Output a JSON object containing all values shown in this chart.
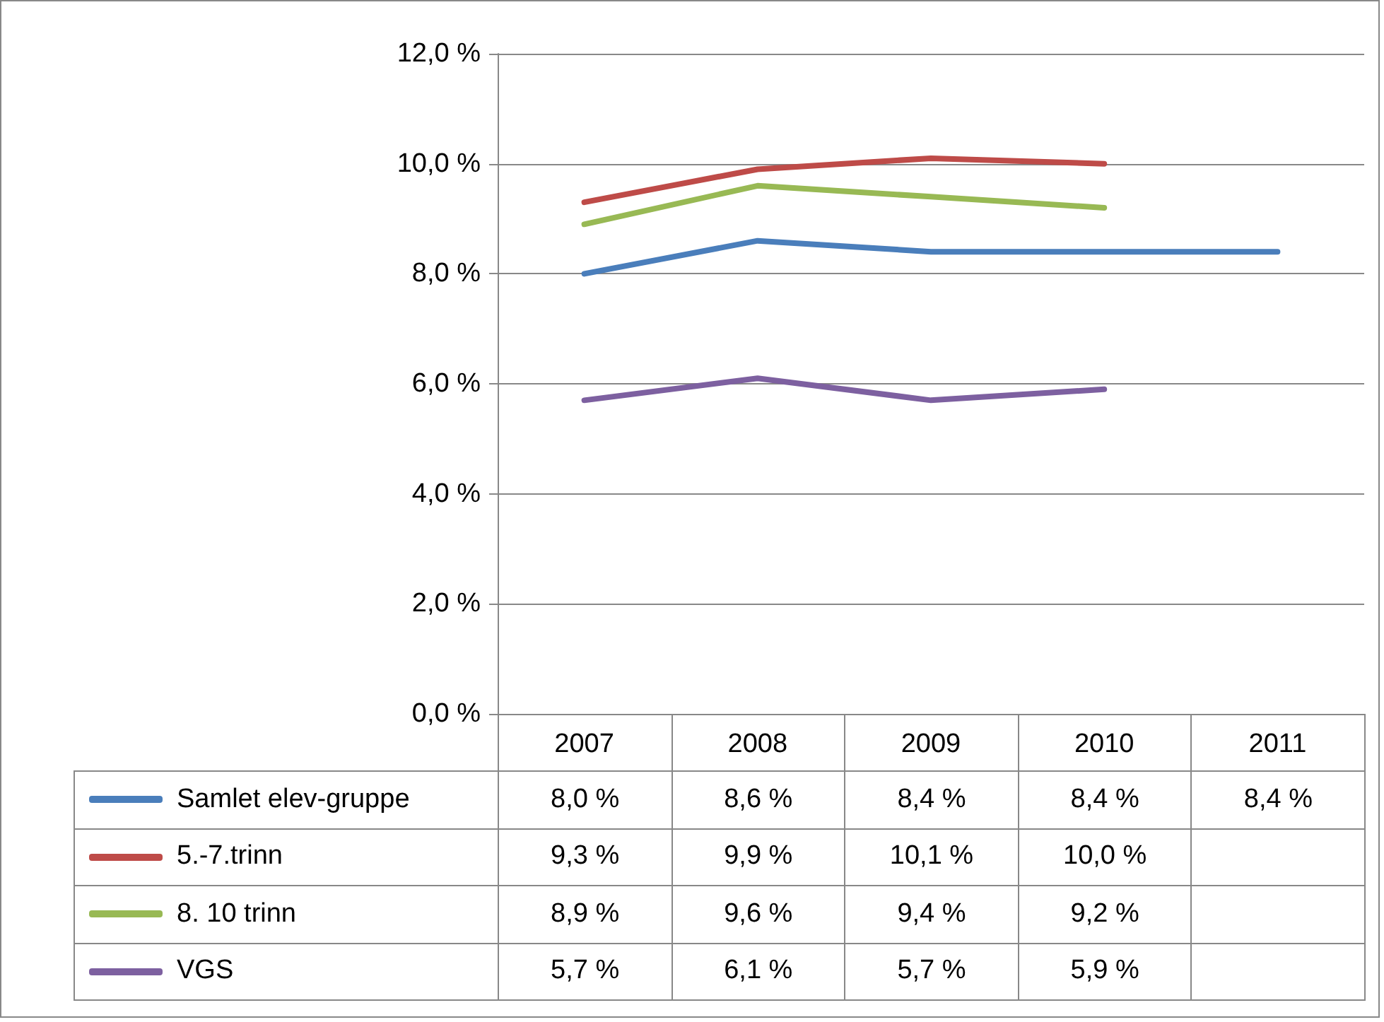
{
  "chart_data": {
    "type": "line",
    "categories": [
      "2007",
      "2008",
      "2009",
      "2010",
      "2011"
    ],
    "series": [
      {
        "name": "Samlet elev-gruppe",
        "color": "#4a7ebb",
        "values": [
          8.0,
          8.6,
          8.4,
          8.4,
          8.4
        ],
        "value_labels": [
          "8,0 %",
          "8,6 %",
          "8,4 %",
          "8,4 %",
          "8,4 %"
        ]
      },
      {
        "name": "5.-7.trinn",
        "color": "#be4b48",
        "values": [
          9.3,
          9.9,
          10.1,
          10.0,
          null
        ],
        "value_labels": [
          "9,3 %",
          "9,9 %",
          "10,1 %",
          "10,0 %",
          null
        ]
      },
      {
        "name": "8. 10 trinn",
        "color": "#98b954",
        "values": [
          8.9,
          9.6,
          9.4,
          9.2,
          null
        ],
        "value_labels": [
          "8,9 %",
          "9,6 %",
          "9,4 %",
          "9,2 %",
          null
        ]
      },
      {
        "name": "VGS",
        "color": "#7d60a0",
        "values": [
          5.7,
          6.1,
          5.7,
          5.9,
          null
        ],
        "value_labels": [
          "5,7 %",
          "6,1 %",
          "5,7 %",
          "5,9 %",
          null
        ]
      }
    ],
    "ylim": [
      0,
      12
    ],
    "yticks": [
      {
        "value": 0,
        "label": "0,0 %"
      },
      {
        "value": 2,
        "label": "2,0 %"
      },
      {
        "value": 4,
        "label": "4,0 %"
      },
      {
        "value": 6,
        "label": "6,0 %"
      },
      {
        "value": 8,
        "label": "8,0 %"
      },
      {
        "value": 10,
        "label": "10,0 %"
      },
      {
        "value": 12,
        "label": "12,0 %"
      }
    ],
    "grid": "y",
    "legend": "bottom",
    "marker": "none",
    "line_style": "solid"
  }
}
